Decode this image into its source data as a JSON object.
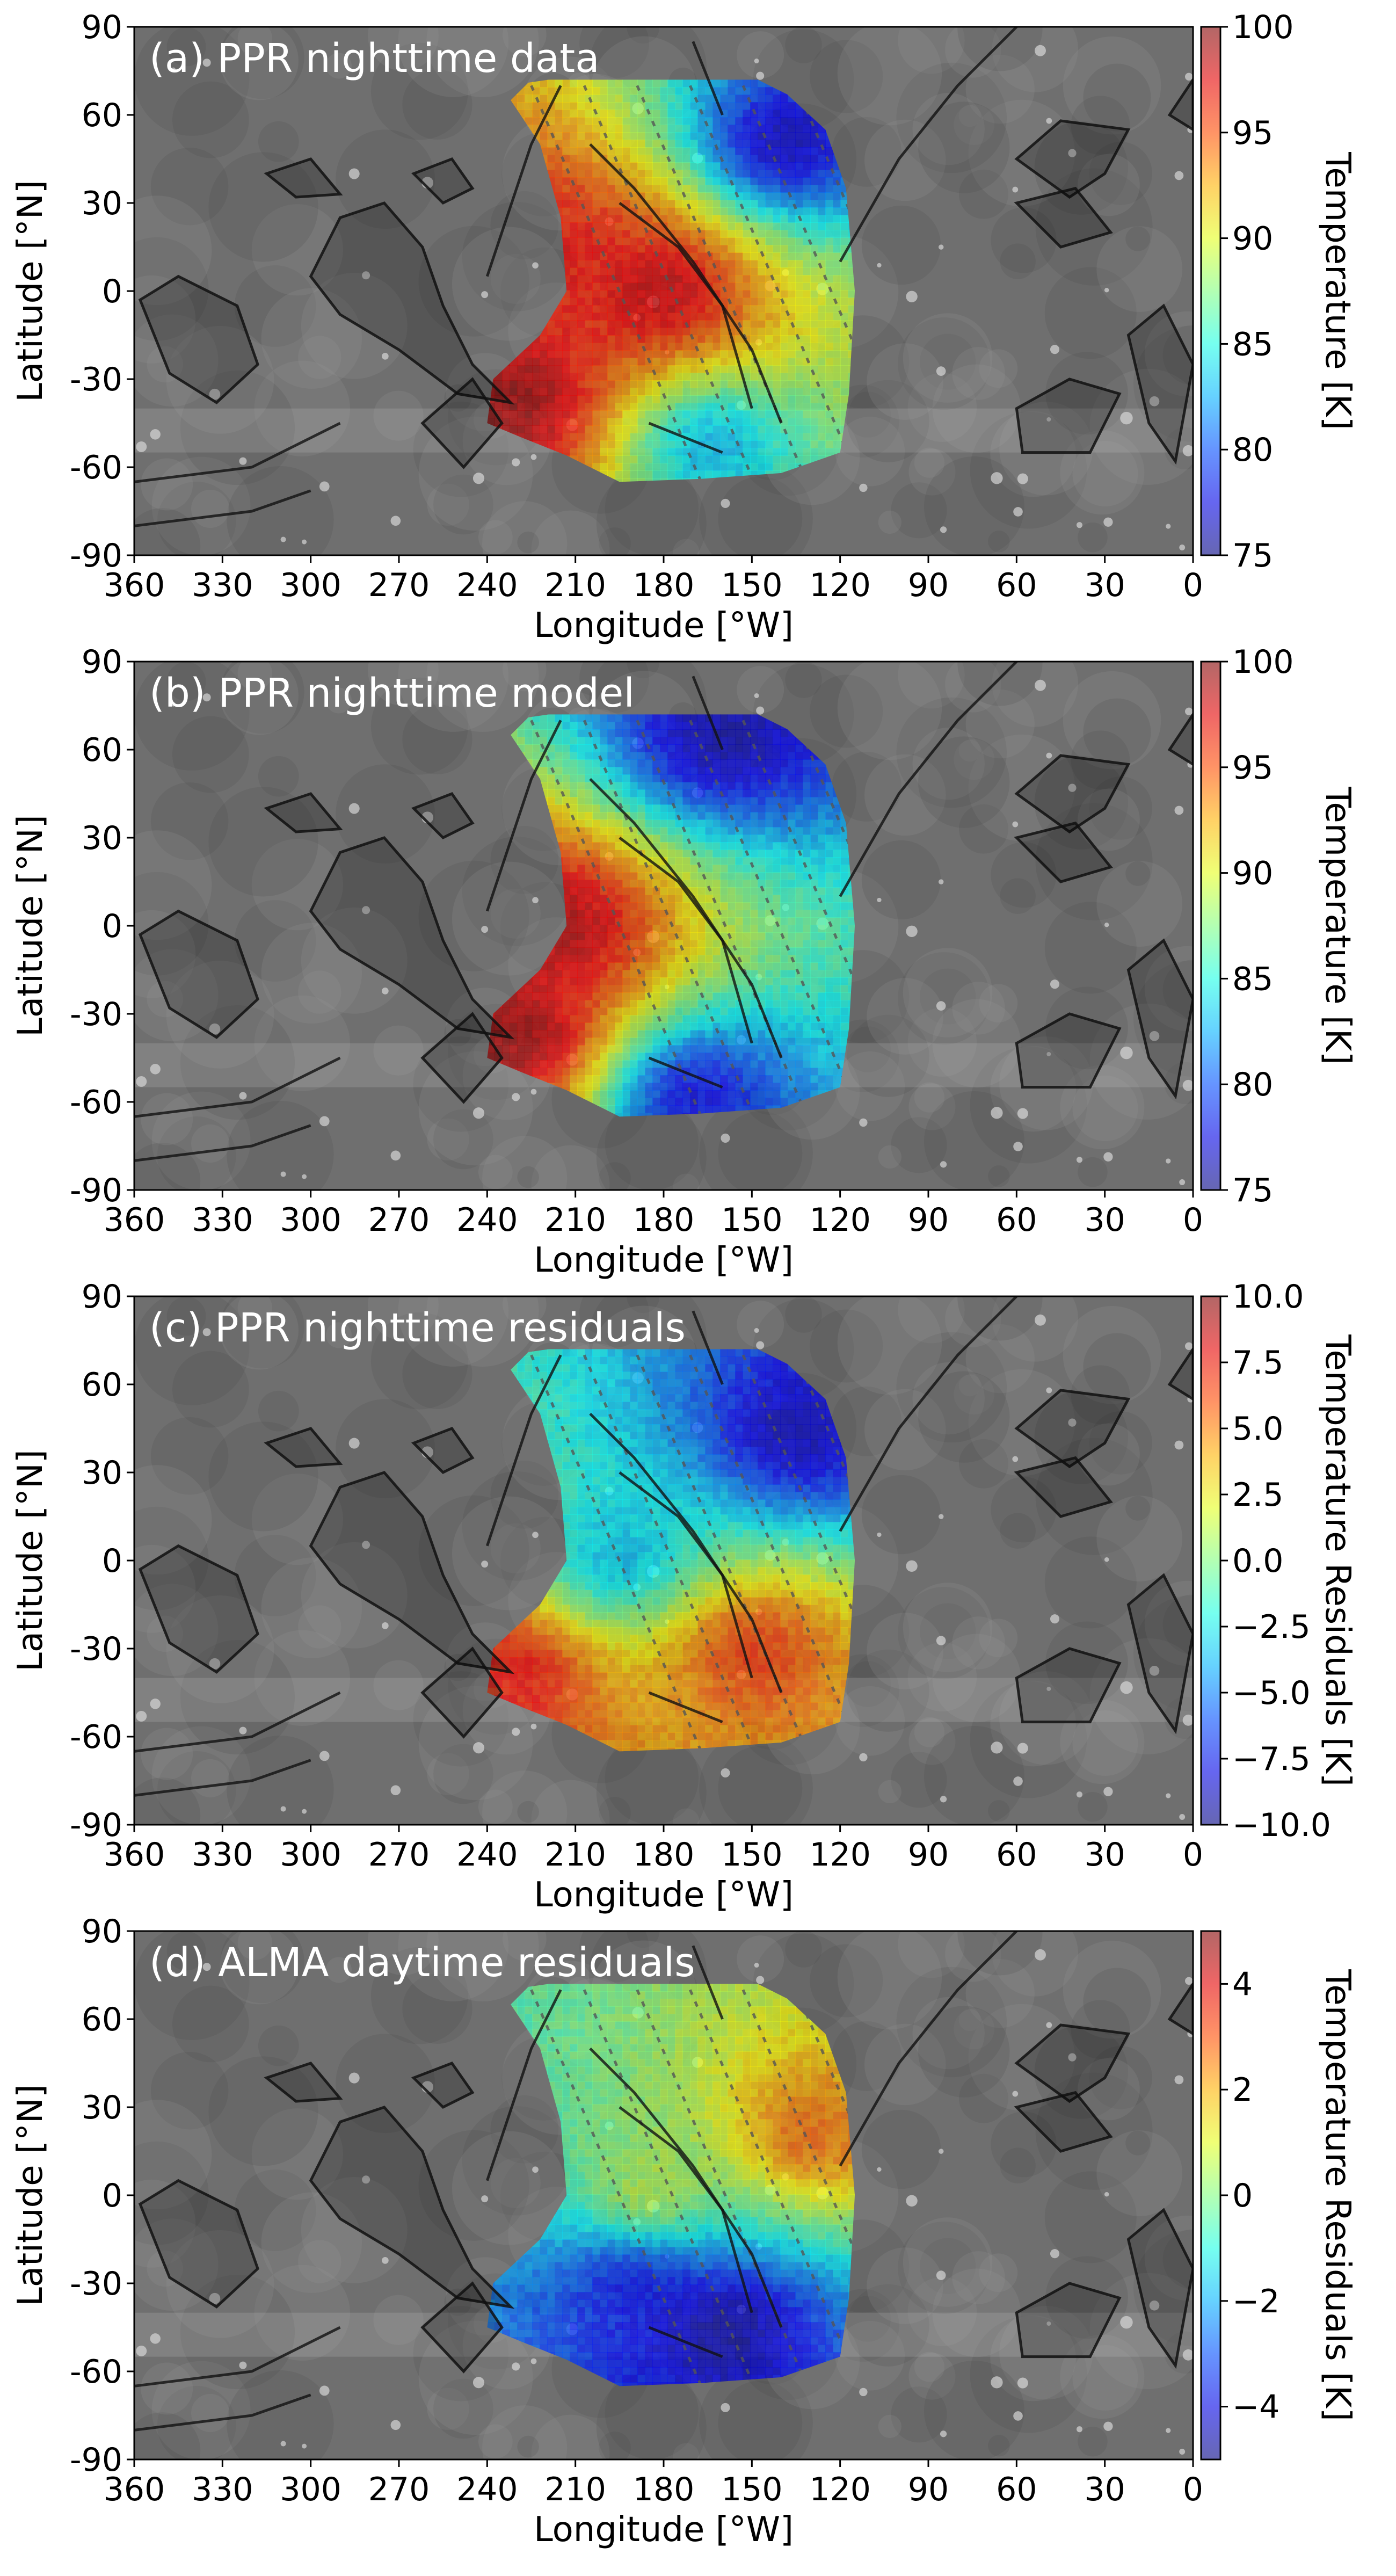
{
  "figure": {
    "x_tick_labels": [
      "360",
      "330",
      "300",
      "270",
      "240",
      "210",
      "180",
      "150",
      "120",
      "90",
      "60",
      "30",
      "0"
    ],
    "y_tick_labels": [
      "90",
      "60",
      "30",
      "0",
      "-30",
      "-60",
      "-90"
    ]
  },
  "chart_data": [
    {
      "type": "heatmap",
      "panel": "a",
      "title": "(a) PPR nighttime data",
      "xlabel": "Longitude [°W]",
      "ylabel": "Latitude [°N]",
      "xlim": [
        360,
        0
      ],
      "ylim": [
        -90,
        90
      ],
      "colorbar": {
        "label": "Temperature [K]",
        "range": [
          75,
          100
        ],
        "ticks": [
          "100",
          "95",
          "90",
          "85",
          "80",
          "75"
        ],
        "colormap": "jet"
      },
      "field": {
        "coverage_longitude_range": [
          240,
          115
        ],
        "coverage_latitude_range": [
          -65,
          72
        ],
        "hot_spots": [
          {
            "lon": 180,
            "lat": 0,
            "value": 99
          },
          {
            "lon": 230,
            "lat": -38,
            "value": 100
          },
          {
            "lon": 215,
            "lat": 15,
            "value": 97
          }
        ],
        "cold_spots": [
          {
            "lon": 140,
            "lat": 50,
            "value": 76
          },
          {
            "lon": 165,
            "lat": -52,
            "value": 82
          }
        ]
      },
      "grid": false
    },
    {
      "type": "heatmap",
      "panel": "b",
      "title": "(b) PPR nighttime model",
      "xlabel": "Longitude [°W]",
      "ylabel": "Latitude [°N]",
      "xlim": [
        360,
        0
      ],
      "ylim": [
        -90,
        90
      ],
      "colorbar": {
        "label": "Temperature [K]",
        "range": [
          75,
          100
        ],
        "ticks": [
          "100",
          "95",
          "90",
          "85",
          "80",
          "75"
        ],
        "colormap": "jet"
      },
      "field": {
        "coverage_longitude_range": [
          240,
          115
        ],
        "coverage_latitude_range": [
          -65,
          72
        ],
        "hot_spots": [
          {
            "lon": 215,
            "lat": 0,
            "value": 99
          },
          {
            "lon": 230,
            "lat": -38,
            "value": 100
          }
        ],
        "cold_spots": [
          {
            "lon": 160,
            "lat": 65,
            "value": 76
          },
          {
            "lon": 170,
            "lat": -58,
            "value": 77
          }
        ]
      },
      "grid": false
    },
    {
      "type": "heatmap",
      "panel": "c",
      "title": "(c) PPR nighttime residuals",
      "xlabel": "Longitude [°W]",
      "ylabel": "Latitude [°N]",
      "xlim": [
        360,
        0
      ],
      "ylim": [
        -90,
        90
      ],
      "colorbar": {
        "label": "Temperature Residuals [K]",
        "range": [
          -10,
          10
        ],
        "ticks": [
          "10.0",
          "7.5",
          "5.0",
          "2.5",
          "0.0",
          "−2.5",
          "−5.0",
          "−7.5",
          "−10.0"
        ],
        "colormap": "jet"
      },
      "field": {
        "coverage_longitude_range": [
          240,
          115
        ],
        "coverage_latitude_range": [
          -65,
          72
        ],
        "hot_spots": [
          {
            "lon": 150,
            "lat": -30,
            "value": 7
          },
          {
            "lon": 230,
            "lat": -38,
            "value": 8
          }
        ],
        "cold_spots": [
          {
            "lon": 135,
            "lat": 43,
            "value": -9
          },
          {
            "lon": 195,
            "lat": 0,
            "value": -4
          }
        ]
      },
      "grid": false
    },
    {
      "type": "heatmap",
      "panel": "d",
      "title": "(d) ALMA daytime residuals",
      "xlabel": "Longitude [°W]",
      "ylabel": "Latitude [°N]",
      "xlim": [
        360,
        0
      ],
      "ylim": [
        -90,
        90
      ],
      "colorbar": {
        "label": "Temperature Residuals [K]",
        "range": [
          -5,
          5
        ],
        "ticks": [
          "4",
          "2",
          "0",
          "−2",
          "−4"
        ],
        "colormap": "jet"
      },
      "field": {
        "coverage_longitude_range": [
          240,
          115
        ],
        "coverage_latitude_range": [
          -65,
          72
        ],
        "hot_spots": [
          {
            "lon": 130,
            "lat": 20,
            "value": 3
          },
          {
            "lon": 185,
            "lat": 0,
            "value": 1
          }
        ],
        "cold_spots": [
          {
            "lon": 160,
            "lat": -45,
            "value": -5
          },
          {
            "lon": 190,
            "lat": -30,
            "value": -4
          }
        ]
      },
      "grid": false
    }
  ]
}
